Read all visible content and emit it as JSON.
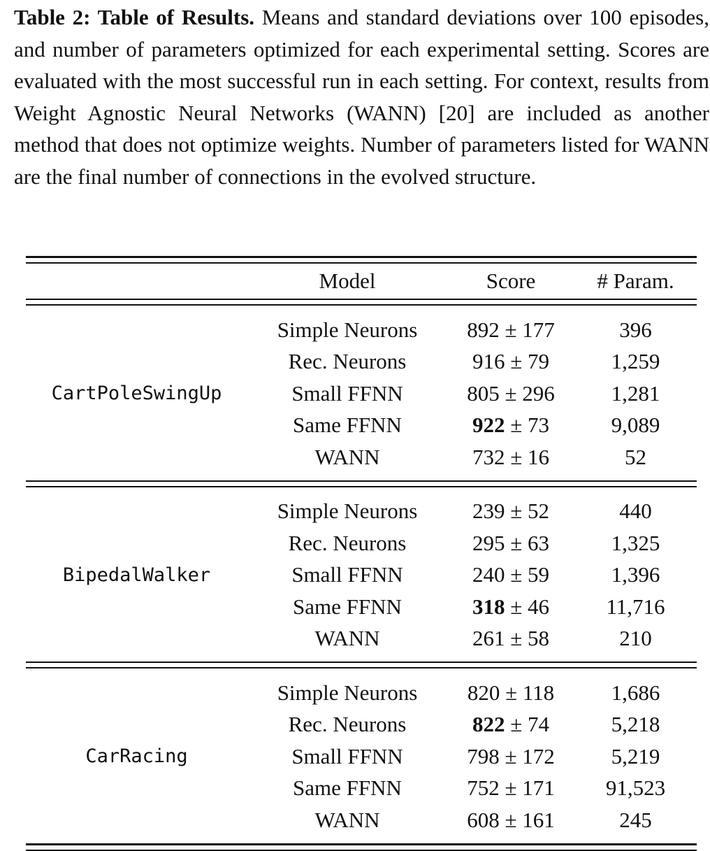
{
  "caption": {
    "label": "Table 2: Table of Results.",
    "text": " Means and standard deviations over 100 episodes, and number of parameters optimized for each experimental setting. Scores are evaluated with the most successful run in each setting. For context, results from Weight Agnostic Neural Networks (WANN) [20] are included as another method that does not optimize weights. Number of parameters listed for WANN are the final number of connections in the evolved structure."
  },
  "table": {
    "headers": {
      "env": "",
      "model": "Model",
      "score": "Score",
      "params": "# Param."
    },
    "groups": [
      {
        "env": "CartPoleSwingUp",
        "rows": [
          {
            "model": "Simple Neurons",
            "mean": "892",
            "std": "± 177",
            "params": "396",
            "best": false
          },
          {
            "model": "Rec. Neurons",
            "mean": "916",
            "std": "± 79",
            "params": "1,259",
            "best": false
          },
          {
            "model": "Small FFNN",
            "mean": "805",
            "std": "± 296",
            "params": "1,281",
            "best": false
          },
          {
            "model": "Same FFNN",
            "mean": "922",
            "std": "± 73",
            "params": "9,089",
            "best": true
          },
          {
            "model": "WANN",
            "mean": "732",
            "std": "± 16",
            "params": "52",
            "best": false
          }
        ]
      },
      {
        "env": "BipedalWalker",
        "rows": [
          {
            "model": "Simple Neurons",
            "mean": "239",
            "std": "± 52",
            "params": "440",
            "best": false
          },
          {
            "model": "Rec. Neurons",
            "mean": "295",
            "std": "± 63",
            "params": "1,325",
            "best": false
          },
          {
            "model": "Small FFNN",
            "mean": "240",
            "std": "± 59",
            "params": "1,396",
            "best": false
          },
          {
            "model": "Same FFNN",
            "mean": "318",
            "std": "± 46",
            "params": "11,716",
            "best": true
          },
          {
            "model": "WANN",
            "mean": "261",
            "std": "± 58",
            "params": "210",
            "best": false
          }
        ]
      },
      {
        "env": "CarRacing",
        "rows": [
          {
            "model": "Simple Neurons",
            "mean": "820",
            "std": "± 118",
            "params": "1,686",
            "best": false
          },
          {
            "model": "Rec. Neurons",
            "mean": "822",
            "std": "± 74",
            "params": "5,218",
            "best": true
          },
          {
            "model": "Small FFNN",
            "mean": "798",
            "std": "± 172",
            "params": "5,219",
            "best": false
          },
          {
            "model": "Same FFNN",
            "mean": "752",
            "std": "± 171",
            "params": "91,523",
            "best": false
          },
          {
            "model": "WANN",
            "mean": "608",
            "std": "± 161",
            "params": "245",
            "best": false
          }
        ]
      }
    ]
  }
}
